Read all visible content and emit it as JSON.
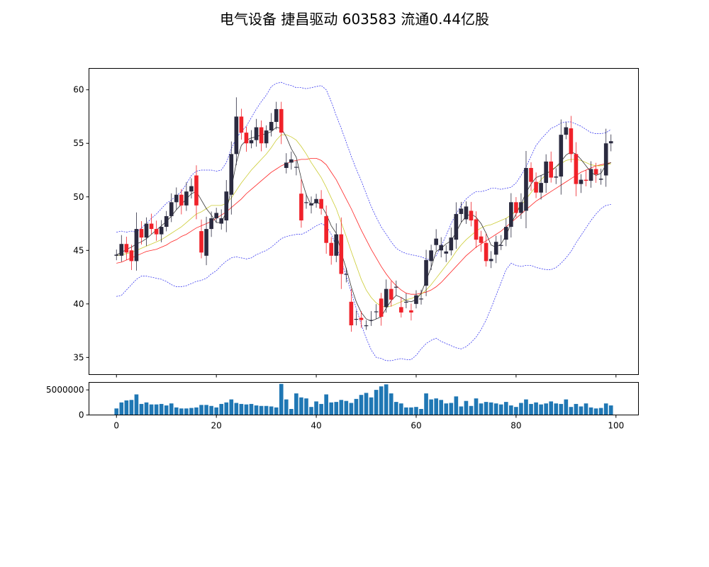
{
  "chart_data": {
    "type": "candlestick",
    "title": "电气设备 捷昌驱动 603583 流通0.44亿股",
    "price_axis": {
      "ylim": [
        33.4,
        62.0
      ],
      "yticks": [
        35,
        40,
        45,
        50,
        55,
        60
      ]
    },
    "volume_axis": {
      "ylim": [
        0,
        6500000
      ],
      "yticks": [
        0,
        5000000
      ],
      "tick_labels": [
        "0",
        "5000000"
      ]
    },
    "x_axis": {
      "xlim": [
        -5.5,
        104.5
      ],
      "xticks": [
        0,
        20,
        40,
        60,
        80,
        100
      ],
      "tick_labels": [
        "0",
        "20",
        "40",
        "60",
        "80",
        "100"
      ]
    },
    "grid": false,
    "colors": {
      "up": "#2b2b40",
      "down": "#f0222a",
      "ma_fast": "#333333",
      "ma_mid": "#cccc33",
      "ma_slow": "#ff2222",
      "band": "#2020ee",
      "volume": "#1f77b4"
    },
    "close": [
      44.6,
      45.6,
      44.8,
      44.0,
      47.0,
      46.2,
      47.5,
      47.0,
      46.5,
      47.2,
      48.2,
      49.5,
      50.2,
      49.2,
      50.5,
      51.0,
      49.2,
      44.8,
      47.0,
      48.0,
      48.5,
      48.0,
      50.5,
      54.0,
      57.5,
      56.0,
      55.0,
      55.3,
      56.5,
      55.0,
      56.2,
      57.0,
      58.2,
      56.0,
      53.2,
      53.5,
      52.8,
      47.8,
      49.5,
      49.4,
      49.8,
      48.9,
      45.7,
      44.5,
      46.5,
      42.8,
      42.8,
      38.0,
      38.6,
      38.5,
      38.0,
      38.5,
      39.3,
      38.8,
      41.4,
      40.4,
      41.6,
      39.2,
      40.2,
      39.2,
      40.8,
      40.5,
      44.1,
      45.0,
      46.1,
      45.5,
      44.9,
      46.2,
      48.4,
      48.9,
      49.1,
      47.8,
      46.0,
      45.7,
      44.0,
      44.2,
      45.8,
      45.5,
      47.2,
      49.5,
      48.5,
      49.5,
      52.7,
      51.4,
      50.4,
      51.3,
      53.3,
      51.8,
      51.9,
      55.8,
      56.5,
      54.0,
      51.2,
      51.6,
      51.5,
      52.6,
      52.1,
      51.7,
      55.0,
      55.2
    ],
    "open": [
      44.5,
      44.5,
      45.6,
      45.0,
      44.0,
      47.0,
      46.2,
      47.5,
      47.0,
      46.5,
      47.2,
      48.2,
      49.5,
      50.2,
      49.2,
      50.5,
      52.0,
      46.8,
      44.5,
      47.0,
      48.0,
      47.5,
      47.8,
      50.2,
      54.0,
      57.5,
      56.0,
      55.0,
      55.3,
      56.5,
      55.0,
      56.2,
      57.0,
      58.2,
      52.7,
      53.2,
      52.8,
      50.3,
      49.5,
      49.2,
      49.4,
      49.8,
      48.2,
      45.7,
      44.5,
      46.5,
      42.8,
      40.2,
      38.6,
      38.7,
      38.0,
      38.5,
      39.3,
      40.5,
      39.7,
      41.4,
      41.6,
      39.7,
      40.2,
      39.4,
      40.0,
      40.5,
      41.7,
      44.0,
      45.5,
      45.0,
      44.7,
      45.0,
      46.0,
      48.4,
      47.9,
      48.7,
      47.9,
      46.3,
      45.7,
      44.0,
      44.6,
      45.5,
      46.0,
      47.2,
      49.5,
      48.5,
      48.7,
      52.7,
      51.4,
      50.4,
      51.3,
      53.3,
      51.8,
      51.9,
      55.8,
      56.4,
      54.0,
      51.2,
      51.6,
      51.5,
      52.6,
      51.6,
      52.0,
      55.0
    ],
    "ma_fast": [
      44.6,
      44.8,
      45.1,
      45.3,
      45.6,
      45.8,
      46.1,
      46.5,
      46.9,
      47.3,
      47.7,
      48.2,
      48.8,
      49.3,
      49.8,
      50.3,
      50.5,
      49.7,
      48.9,
      48.3,
      47.6,
      47.6,
      48.6,
      50.8,
      53.2,
      54.8,
      55.3,
      55.5,
      55.6,
      55.8,
      55.9,
      56.1,
      56.5,
      56.4,
      55.6,
      54.5,
      53.7,
      51.7,
      50.2,
      49.2,
      49.6,
      49.2,
      48.4,
      47.3,
      46.6,
      44.8,
      43.3,
      41.6,
      40.2,
      39.2,
      38.6,
      38.4,
      38.6,
      38.8,
      39.6,
      40.3,
      40.8,
      40.6,
      40.3,
      40.2,
      40.4,
      41.0,
      42.2,
      43.4,
      44.9,
      45.2,
      45.6,
      45.9,
      46.7,
      47.6,
      48.2,
      48.4,
      48.1,
      47.5,
      46.6,
      45.5,
      45.3,
      45.6,
      46.4,
      47.5,
      48.4,
      49.3,
      50.4,
      51.2,
      51.8,
      52.0,
      52.2,
      52.4,
      52.8,
      53.3,
      53.9,
      54.2,
      54.0,
      53.5,
      52.9,
      52.3,
      52.0,
      52.2,
      53.0,
      53.2
    ],
    "ma_mid": [
      44.5,
      44.6,
      44.7,
      44.8,
      45.0,
      45.2,
      45.4,
      45.6,
      45.8,
      46.0,
      46.3,
      46.6,
      46.9,
      47.2,
      47.6,
      48.0,
      48.4,
      48.6,
      48.9,
      49.2,
      49.2,
      49.2,
      49.4,
      49.9,
      50.6,
      51.3,
      51.9,
      52.5,
      53.0,
      53.5,
      54.0,
      54.6,
      55.3,
      55.8,
      55.8,
      55.6,
      55.3,
      54.7,
      54.0,
      53.2,
      52.5,
      51.8,
      50.9,
      49.9,
      48.9,
      47.6,
      46.3,
      44.9,
      43.6,
      42.3,
      41.3,
      40.6,
      40.1,
      39.8,
      39.7,
      39.8,
      40.0,
      40.2,
      40.4,
      40.5,
      40.7,
      40.9,
      41.3,
      41.8,
      42.4,
      43.0,
      43.6,
      44.2,
      44.9,
      45.5,
      46.0,
      46.4,
      46.8,
      47.1,
      47.3,
      47.4,
      47.6,
      47.8,
      48.0,
      48.3,
      48.7,
      49.2,
      49.8,
      50.4,
      51.0,
      51.6,
      52.1,
      52.5,
      52.8,
      53.1,
      53.4,
      53.5,
      53.5,
      53.4,
      53.2,
      53.0,
      52.9,
      52.9,
      53.0,
      53.1
    ],
    "ma_slow": [
      43.8,
      43.9,
      44.1,
      44.3,
      44.5,
      44.7,
      44.9,
      45.0,
      45.1,
      45.3,
      45.5,
      45.8,
      46.0,
      46.3,
      46.5,
      46.8,
      47.1,
      47.3,
      47.5,
      47.7,
      48.0,
      48.3,
      48.6,
      49.0,
      49.4,
      49.8,
      50.3,
      50.7,
      51.1,
      51.5,
      51.9,
      52.3,
      52.6,
      52.9,
      53.1,
      53.3,
      53.4,
      53.5,
      53.5,
      53.6,
      53.6,
      53.4,
      53.0,
      52.3,
      51.6,
      50.7,
      49.8,
      48.9,
      47.9,
      46.9,
      46.0,
      45.1,
      44.3,
      43.5,
      42.8,
      42.2,
      41.7,
      41.3,
      41.0,
      40.9,
      40.9,
      41.0,
      41.1,
      41.3,
      41.6,
      42.0,
      42.5,
      43.0,
      43.5,
      44.0,
      44.5,
      44.9,
      45.3,
      45.6,
      45.9,
      46.2,
      46.5,
      46.8,
      47.2,
      47.6,
      48.0,
      48.4,
      48.8,
      49.2,
      49.6,
      49.9,
      50.2,
      50.5,
      50.8,
      51.1,
      51.4,
      51.7,
      52.0,
      52.3,
      52.5,
      52.7,
      52.9,
      53.0,
      53.1,
      53.2
    ],
    "band_upper": [
      46.7,
      46.8,
      46.7,
      46.8,
      46.7,
      47.1,
      47.5,
      48.0,
      48.4,
      48.9,
      49.4,
      49.7,
      50.1,
      50.5,
      51.2,
      52.0,
      52.4,
      52.5,
      52.5,
      52.5,
      52.4,
      52.5,
      53.2,
      54.5,
      55.5,
      56.1,
      56.6,
      57.4,
      58.2,
      58.9,
      59.5,
      60.3,
      60.6,
      60.7,
      60.5,
      60.4,
      60.2,
      60.2,
      60.1,
      60.2,
      60.3,
      60.4,
      60.0,
      58.9,
      57.6,
      56.4,
      55.1,
      53.8,
      52.6,
      51.5,
      50.3,
      49.1,
      48.1,
      47.2,
      46.5,
      45.8,
      45.2,
      44.9,
      44.7,
      44.6,
      44.5,
      44.4,
      44.2,
      44.1,
      44.5,
      45.4,
      46.4,
      47.5,
      48.4,
      49.2,
      49.8,
      50.2,
      50.5,
      50.5,
      50.6,
      50.8,
      50.8,
      50.7,
      50.8,
      50.9,
      51.3,
      52.0,
      52.8,
      53.8,
      54.8,
      55.4,
      55.9,
      56.4,
      56.6,
      56.9,
      57.0,
      57.0,
      56.8,
      56.6,
      56.3,
      56.0,
      55.9,
      55.9,
      56.0,
      56.3
    ],
    "band_lower": [
      40.7,
      40.8,
      41.3,
      41.8,
      42.3,
      42.6,
      42.6,
      42.5,
      42.4,
      42.3,
      42.1,
      41.8,
      41.6,
      41.6,
      41.7,
      41.9,
      42.1,
      42.2,
      42.4,
      42.8,
      43.1,
      43.6,
      44.0,
      44.3,
      44.4,
      44.3,
      44.2,
      44.3,
      44.6,
      44.8,
      45.0,
      45.3,
      45.7,
      46.1,
      46.3,
      46.4,
      46.5,
      46.5,
      46.7,
      47.0,
      47.3,
      47.5,
      47.3,
      46.5,
      45.4,
      44.0,
      42.6,
      41.1,
      39.6,
      38.1,
      36.8,
      35.7,
      35.0,
      34.9,
      34.7,
      34.7,
      34.8,
      34.9,
      34.8,
      34.8,
      35.2,
      35.8,
      36.3,
      36.6,
      36.8,
      36.5,
      36.3,
      36.1,
      35.9,
      35.8,
      36.0,
      36.4,
      36.9,
      37.6,
      38.5,
      39.6,
      40.8,
      42.0,
      43.2,
      43.8,
      43.6,
      43.5,
      43.6,
      43.6,
      43.4,
      43.3,
      43.2,
      43.2,
      43.4,
      43.8,
      44.3,
      44.9,
      45.7,
      46.4,
      47.1,
      47.8,
      48.4,
      48.9,
      49.2,
      49.3
    ],
    "volume": [
      1300000,
      2500000,
      2900000,
      3000000,
      4100000,
      2200000,
      2500000,
      2100000,
      2100000,
      2200000,
      1900000,
      2300000,
      1500000,
      1300000,
      1300000,
      1400000,
      1500000,
      2000000,
      2000000,
      1800000,
      1500000,
      2200000,
      2500000,
      3100000,
      2400000,
      2200000,
      2100000,
      2200000,
      1900000,
      1800000,
      1800000,
      1700000,
      1500000,
      6200000,
      3100000,
      1200000,
      4300000,
      3500000,
      3300000,
      1600000,
      2700000,
      2200000,
      4100000,
      2500000,
      2600000,
      3000000,
      2800000,
      2400000,
      3200000,
      4000000,
      4400000,
      3500000,
      5000000,
      5700000,
      6100000,
      4300000,
      2600000,
      2300000,
      1500000,
      1500000,
      1600000,
      1200000,
      4300000,
      3100000,
      3300000,
      3000000,
      2300000,
      2400000,
      3700000,
      1700000,
      2800000,
      1800000,
      3300000,
      2300000,
      2600000,
      2500000,
      2300000,
      2100000,
      2600000,
      1900000,
      1600000,
      2400000,
      3100000,
      2200000,
      2500000,
      2100000,
      2300000,
      2700000,
      2300000,
      2200000,
      3100000,
      1600000,
      2200000,
      1700000,
      2300000,
      1500000,
      1300000,
      1400000,
      2300000,
      1900000
    ]
  }
}
